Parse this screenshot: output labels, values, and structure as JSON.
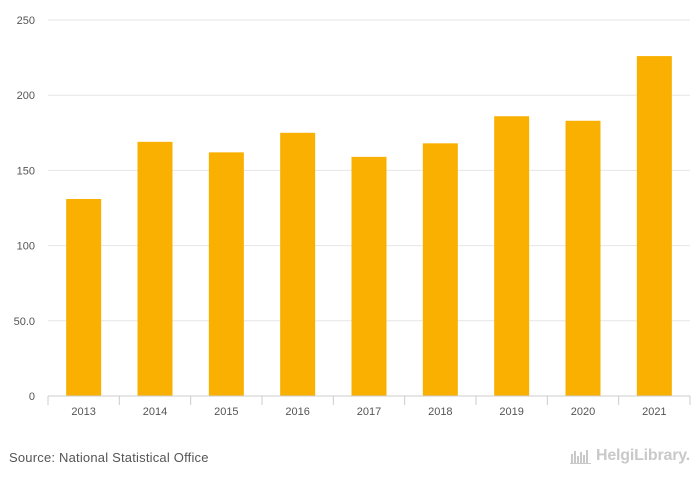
{
  "chart_data": {
    "type": "bar",
    "title": "",
    "xlabel": "",
    "ylabel": "",
    "categories": [
      "2013",
      "2014",
      "2015",
      "2016",
      "2017",
      "2018",
      "2019",
      "2020",
      "2021"
    ],
    "values": [
      131,
      169,
      162,
      175,
      159,
      168,
      186,
      183,
      226
    ],
    "ylim": [
      0,
      250
    ],
    "yticks": [
      0,
      50,
      100,
      150,
      200,
      250
    ],
    "ytick_labels": [
      "0",
      "50.0",
      "100",
      "150",
      "200",
      "250"
    ],
    "grid": true,
    "bar_color": "#f9b000",
    "grid_color": "#e6e6e6",
    "axis_color": "#cccccc"
  },
  "footer": {
    "source": "Source: National Statistical Office",
    "brand": "HelgiLibrary."
  }
}
